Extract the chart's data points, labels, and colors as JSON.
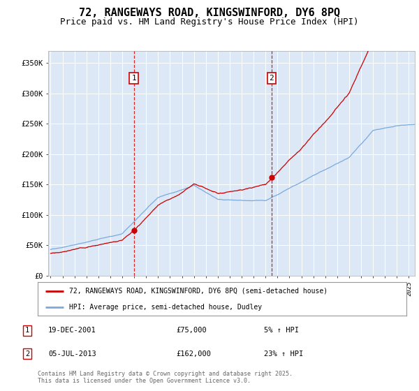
{
  "title": "72, RANGEWAYS ROAD, KINGSWINFORD, DY6 8PQ",
  "subtitle": "Price paid vs. HM Land Registry's House Price Index (HPI)",
  "title_fontsize": 11,
  "subtitle_fontsize": 9,
  "background_color": "#dce8f5",
  "plot_bg_color": "#dce8f5",
  "ylim": [
    0,
    370000
  ],
  "xlim_start": 1994.8,
  "xlim_end": 2025.5,
  "red_line_color": "#cc0000",
  "blue_line_color": "#7aaadd",
  "sale1_date": 2001.97,
  "sale1_price": 75000,
  "sale2_date": 2013.5,
  "sale2_price": 162000,
  "legend_label_red": "72, RANGEWAYS ROAD, KINGSWINFORD, DY6 8PQ (semi-detached house)",
  "legend_label_blue": "HPI: Average price, semi-detached house, Dudley",
  "table_row1": [
    "1",
    "19-DEC-2001",
    "£75,000",
    "5% ↑ HPI"
  ],
  "table_row2": [
    "2",
    "05-JUL-2013",
    "£162,000",
    "23% ↑ HPI"
  ],
  "footer": "Contains HM Land Registry data © Crown copyright and database right 2025.\nThis data is licensed under the Open Government Licence v3.0.",
  "yticks": [
    0,
    50000,
    100000,
    150000,
    200000,
    250000,
    300000,
    350000
  ],
  "ytick_labels": [
    "£0",
    "£50K",
    "£100K",
    "£150K",
    "£200K",
    "£250K",
    "£300K",
    "£350K"
  ]
}
